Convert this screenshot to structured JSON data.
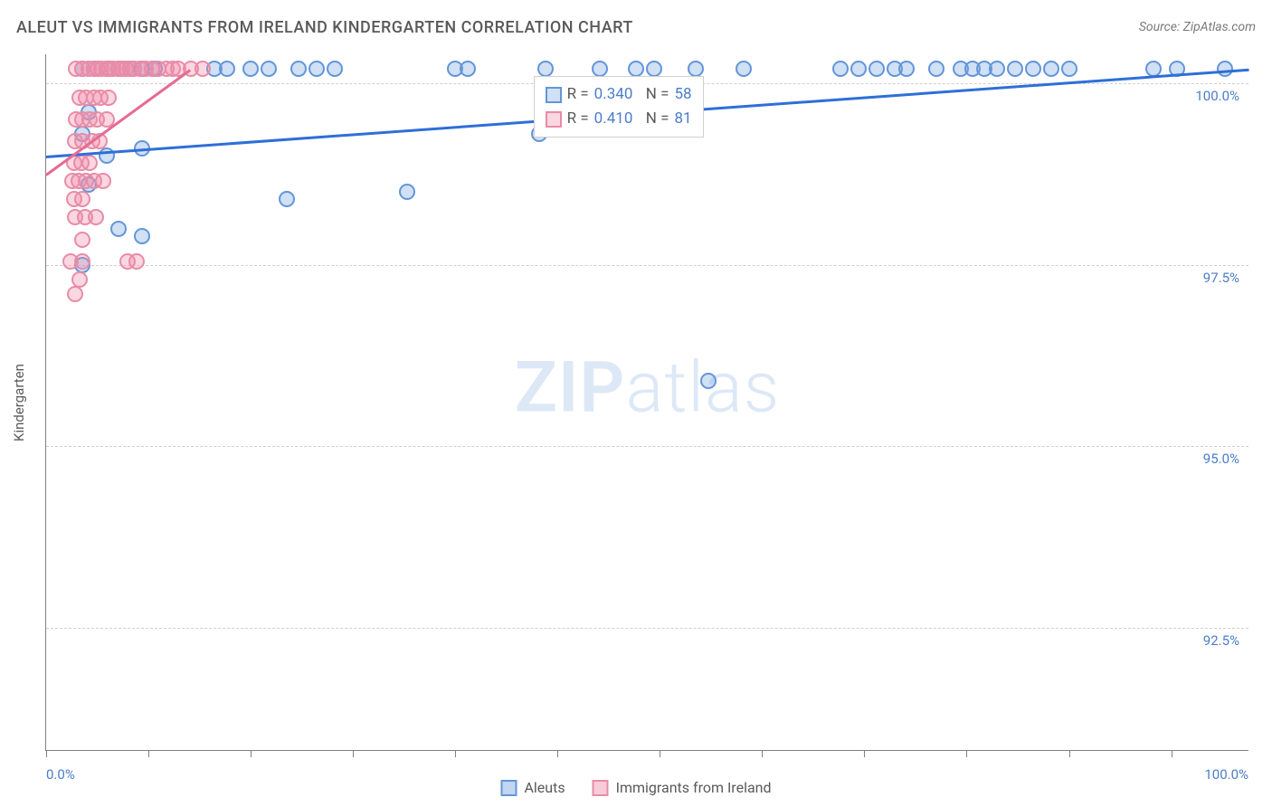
{
  "title": "ALEUT VS IMMIGRANTS FROM IRELAND KINDERGARTEN CORRELATION CHART",
  "source": "Source: ZipAtlas.com",
  "watermark_bold": "ZIP",
  "watermark_rest": "atlas",
  "chart": {
    "type": "scatter",
    "yaxis_title": "Kindergarten",
    "xlim": [
      0,
      100
    ],
    "ylim": [
      90.8,
      100.4
    ],
    "xticks_pct": [
      0,
      8.5,
      17,
      25.5,
      34,
      42.5,
      51,
      59.5,
      68,
      76.5,
      85,
      93.5
    ],
    "yticks": [
      92.5,
      95.0,
      97.5,
      100.0
    ],
    "ytick_labels": [
      "92.5%",
      "95.0%",
      "97.5%",
      "100.0%"
    ],
    "xaxis_min_label": "0.0%",
    "xaxis_max_label": "100.0%",
    "background_color": "#ffffff",
    "grid_color": "#d0d0d0",
    "axis_color": "#808080",
    "marker_radius": 9,
    "series": [
      {
        "name": "Aleuts",
        "color_fill": "rgba(120,165,225,0.35)",
        "color_stroke": "#6495d8",
        "trend_color": "#2e6fd8",
        "R": "0.340",
        "N": "58",
        "trend": {
          "x1": 0,
          "y1": 99.0,
          "x2": 100,
          "y2": 100.2
        },
        "points": [
          [
            3,
            100.2
          ],
          [
            4,
            100.2
          ],
          [
            5,
            100.2
          ],
          [
            6,
            100.2
          ],
          [
            7,
            100.2
          ],
          [
            8,
            100.2
          ],
          [
            9,
            100.2
          ],
          [
            14,
            100.2
          ],
          [
            15,
            100.2
          ],
          [
            17,
            100.2
          ],
          [
            18.5,
            100.2
          ],
          [
            21,
            100.2
          ],
          [
            22.5,
            100.2
          ],
          [
            24,
            100.2
          ],
          [
            34,
            100.2
          ],
          [
            35,
            100.2
          ],
          [
            41.5,
            100.2
          ],
          [
            46,
            100.2
          ],
          [
            49,
            100.2
          ],
          [
            50.5,
            100.2
          ],
          [
            54,
            100.2
          ],
          [
            58,
            100.2
          ],
          [
            66,
            100.2
          ],
          [
            67.5,
            100.2
          ],
          [
            69,
            100.2
          ],
          [
            70.5,
            100.2
          ],
          [
            71.5,
            100.2
          ],
          [
            74,
            100.2
          ],
          [
            76,
            100.2
          ],
          [
            77,
            100.2
          ],
          [
            78,
            100.2
          ],
          [
            79,
            100.2
          ],
          [
            80.5,
            100.2
          ],
          [
            82,
            100.2
          ],
          [
            83.5,
            100.2
          ],
          [
            85,
            100.2
          ],
          [
            92,
            100.2
          ],
          [
            94,
            100.2
          ],
          [
            98,
            100.2
          ],
          [
            3.5,
            99.6
          ],
          [
            3.0,
            99.3
          ],
          [
            5,
            99.0
          ],
          [
            8,
            99.1
          ],
          [
            41,
            99.3
          ],
          [
            3.5,
            98.6
          ],
          [
            20,
            98.4
          ],
          [
            30,
            98.5
          ],
          [
            6,
            98.0
          ],
          [
            8,
            97.9
          ],
          [
            3,
            97.5
          ],
          [
            55,
            95.9
          ]
        ]
      },
      {
        "name": "Immigrants from Ireland",
        "color_fill": "rgba(240,140,170,0.35)",
        "color_stroke": "#e88ca8",
        "trend_color": "#e56b93",
        "R": "0.410",
        "N": "81",
        "trend": {
          "x1": 0,
          "y1": 98.75,
          "x2": 12,
          "y2": 100.2
        },
        "points": [
          [
            2.5,
            100.2
          ],
          [
            3,
            100.2
          ],
          [
            3.5,
            100.2
          ],
          [
            4,
            100.2
          ],
          [
            4.3,
            100.2
          ],
          [
            4.6,
            100.2
          ],
          [
            5,
            100.2
          ],
          [
            5.3,
            100.2
          ],
          [
            5.6,
            100.2
          ],
          [
            6,
            100.2
          ],
          [
            6.3,
            100.2
          ],
          [
            6.6,
            100.2
          ],
          [
            7,
            100.2
          ],
          [
            7.3,
            100.2
          ],
          [
            7.8,
            100.2
          ],
          [
            8.3,
            100.2
          ],
          [
            8.8,
            100.2
          ],
          [
            9.3,
            100.2
          ],
          [
            10,
            100.2
          ],
          [
            10.5,
            100.2
          ],
          [
            11,
            100.2
          ],
          [
            12,
            100.2
          ],
          [
            13,
            100.2
          ],
          [
            2.8,
            99.8
          ],
          [
            3.3,
            99.8
          ],
          [
            4.0,
            99.8
          ],
          [
            4.5,
            99.8
          ],
          [
            5.2,
            99.8
          ],
          [
            2.5,
            99.5
          ],
          [
            3.0,
            99.5
          ],
          [
            3.6,
            99.5
          ],
          [
            4.2,
            99.5
          ],
          [
            5.0,
            99.5
          ],
          [
            2.4,
            99.2
          ],
          [
            3.0,
            99.2
          ],
          [
            3.8,
            99.2
          ],
          [
            4.4,
            99.2
          ],
          [
            2.3,
            98.9
          ],
          [
            2.9,
            98.9
          ],
          [
            3.6,
            98.9
          ],
          [
            2.2,
            98.65
          ],
          [
            2.7,
            98.65
          ],
          [
            3.3,
            98.65
          ],
          [
            4.0,
            98.65
          ],
          [
            4.7,
            98.65
          ],
          [
            2.3,
            98.4
          ],
          [
            3.0,
            98.4
          ],
          [
            2.4,
            98.15
          ],
          [
            3.2,
            98.15
          ],
          [
            4.1,
            98.15
          ],
          [
            3.0,
            97.85
          ],
          [
            3.0,
            97.55
          ],
          [
            6.8,
            97.55
          ],
          [
            7.5,
            97.55
          ],
          [
            2.8,
            97.3
          ],
          [
            2,
            97.55
          ],
          [
            2.4,
            97.1
          ]
        ]
      }
    ],
    "legend_stats_pos": {
      "left_pct": 40.5,
      "top_y": 100.1
    },
    "bottom_legend": [
      {
        "label": "Aleuts",
        "fill": "rgba(120,165,225,0.45)",
        "stroke": "#6495d8"
      },
      {
        "label": "Immigrants from Ireland",
        "fill": "rgba(240,140,170,0.45)",
        "stroke": "#e88ca8"
      }
    ]
  }
}
